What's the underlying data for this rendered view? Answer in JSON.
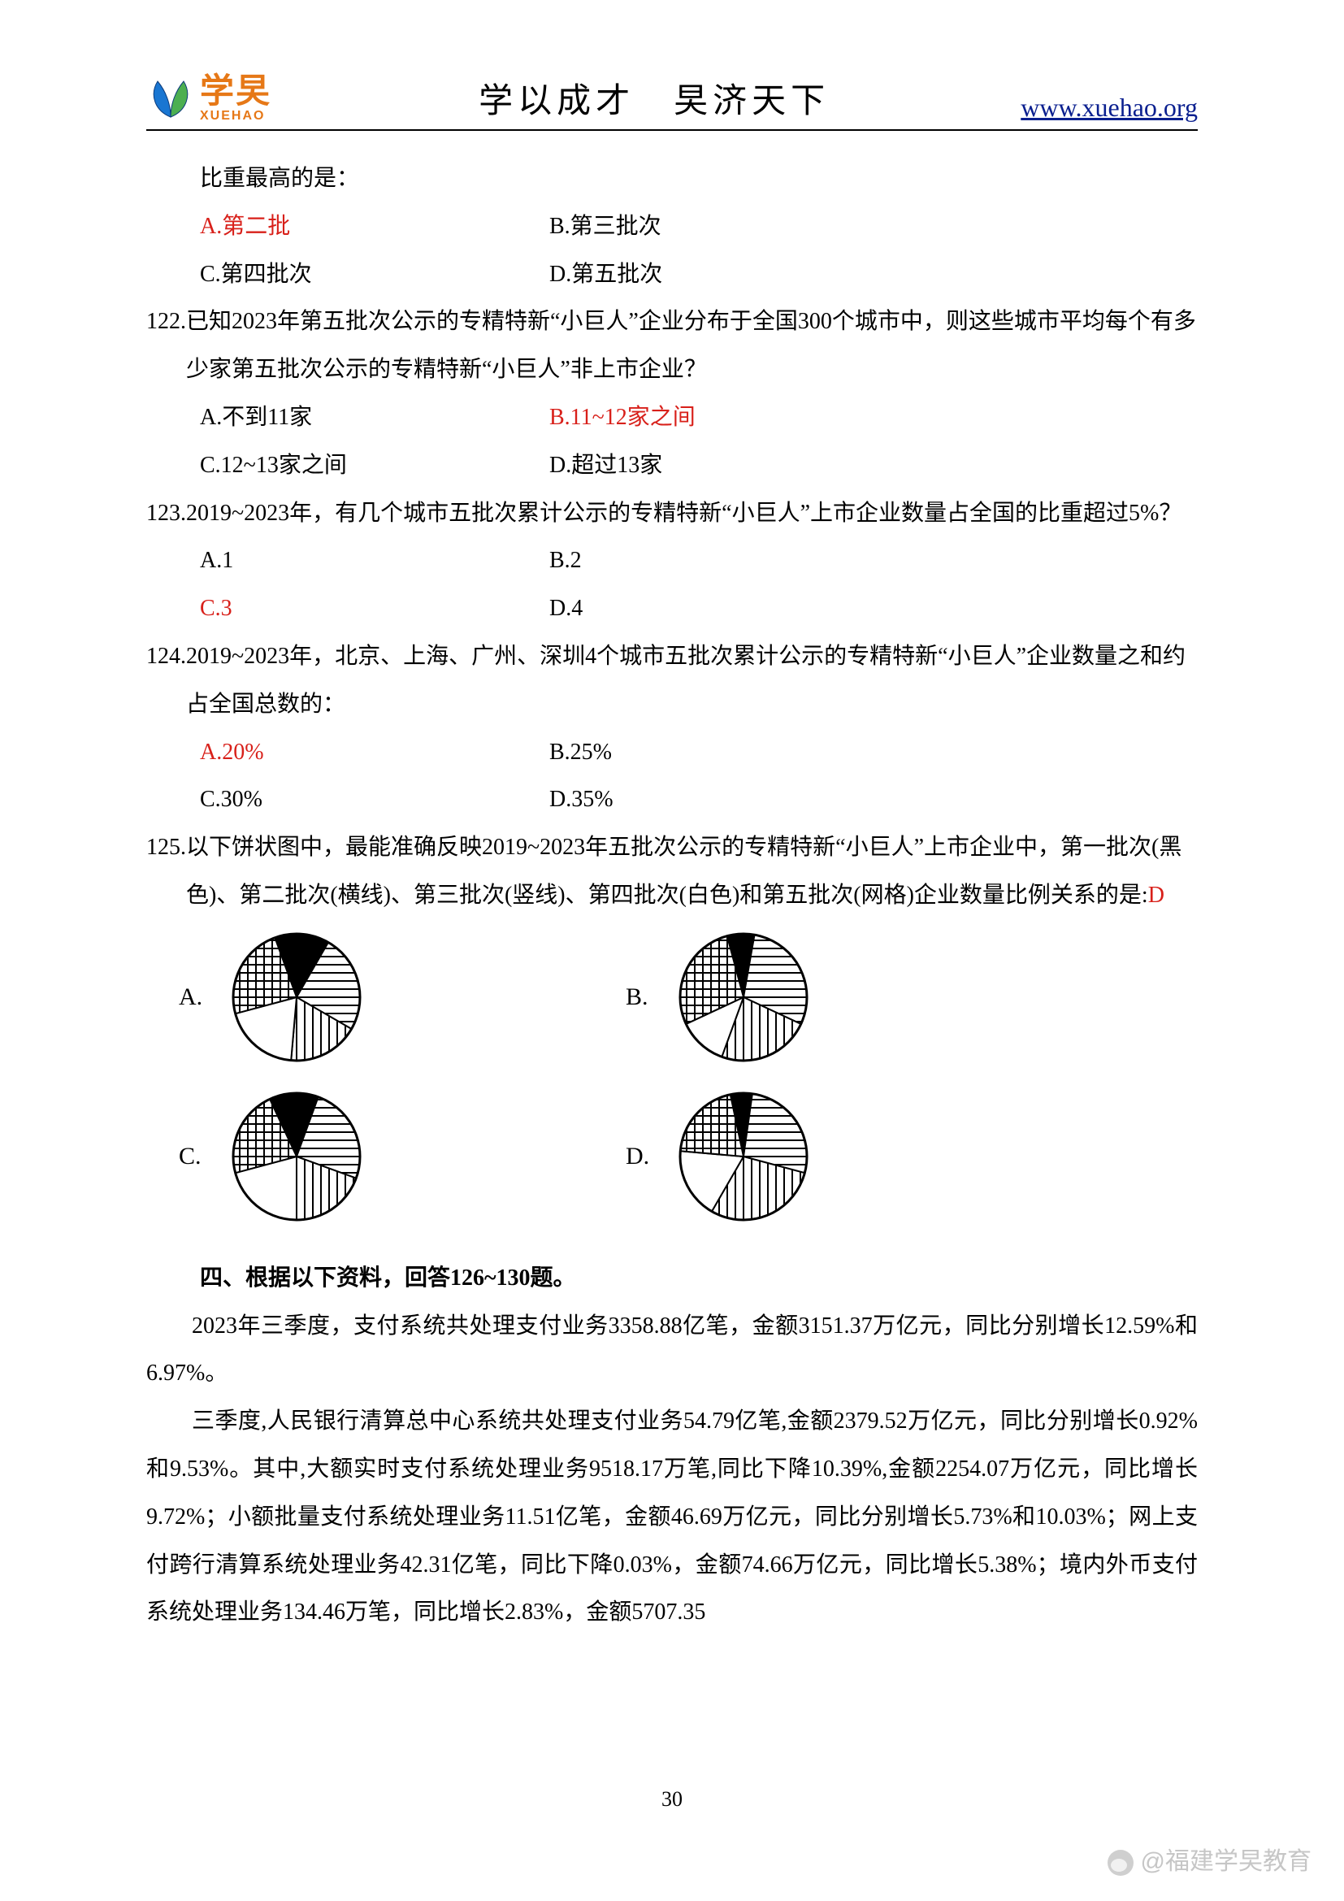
{
  "header": {
    "logo_cn": "学旲",
    "logo_en": "XUEHAO",
    "title": "学以成才　旲济天下",
    "link": "www.xuehao.org",
    "logo_leaf_colors": {
      "left": "#1976d2",
      "right": "#4caf50",
      "stroke": "#0b3a7a"
    }
  },
  "frag_top": {
    "text": "比重最高的是：",
    "opts": {
      "A": "A.第二批",
      "B": "B.第三批次",
      "C": "C.第四批次",
      "D": "D.第五批次"
    },
    "answer": "A"
  },
  "q122": {
    "num": "122.",
    "text": "已知2023年第五批次公示的专精特新“小巨人”企业分布于全国300个城市中，则这些城市平均每个有多少家第五批次公示的专精特新“小巨人”非上市企业？",
    "opts": {
      "A": "A.不到11家",
      "B": "B.11~12家之间",
      "C": "C.12~13家之间",
      "D": "D.超过13家"
    },
    "answer": "B"
  },
  "q123": {
    "num": "123.",
    "text": "2019~2023年，有几个城市五批次累计公示的专精特新“小巨人”上市企业数量占全国的比重超过5%？",
    "opts": {
      "A": "A.1",
      "B": "B.2",
      "C": "C.3",
      "D": "D.4"
    },
    "answer": "C"
  },
  "q124": {
    "num": "124.",
    "text": "2019~2023年，北京、上海、广州、深圳4个城市五批次累计公示的专精特新“小巨人”企业数量之和约占全国总数的：",
    "opts": {
      "A": "A.20%",
      "B": "B.25%",
      "C": "C.30%",
      "D": "D.35%"
    },
    "answer": "A"
  },
  "q125": {
    "num": "125.",
    "text_a": "以下饼状图中，最能准确反映2019~2023年五批次公示的专精特新“小巨人”上市企业中，第一批次(黑色)、第二批次(横线)、第三批次(竖线)、第四批次(白色)和第五批次(网格)企业数量比例关系的是:",
    "answer_letter": "D",
    "pies": {
      "fill_colors": {
        "black": "#000000",
        "white": "#ffffff"
      },
      "pattern_stroke": "#000000",
      "radius": 78,
      "A": {
        "label": "A.",
        "slices": [
          {
            "start": -20,
            "end": 30,
            "fill": "black"
          },
          {
            "start": 30,
            "end": 120,
            "fill": "horiz"
          },
          {
            "start": 120,
            "end": 185,
            "fill": "vert"
          },
          {
            "start": 185,
            "end": 255,
            "fill": "white"
          },
          {
            "start": 255,
            "end": 340,
            "fill": "grid"
          }
        ]
      },
      "B": {
        "label": "B.",
        "slices": [
          {
            "start": -15,
            "end": 10,
            "fill": "black"
          },
          {
            "start": 10,
            "end": 115,
            "fill": "horiz"
          },
          {
            "start": 115,
            "end": 200,
            "fill": "vert"
          },
          {
            "start": 200,
            "end": 245,
            "fill": "white"
          },
          {
            "start": 245,
            "end": 345,
            "fill": "grid"
          }
        ]
      },
      "C": {
        "label": "C.",
        "slices": [
          {
            "start": -25,
            "end": 20,
            "fill": "black"
          },
          {
            "start": 20,
            "end": 110,
            "fill": "horiz"
          },
          {
            "start": 110,
            "end": 180,
            "fill": "vert"
          },
          {
            "start": 180,
            "end": 255,
            "fill": "white"
          },
          {
            "start": 255,
            "end": 335,
            "fill": "grid"
          }
        ]
      },
      "D": {
        "label": "D.",
        "slices": [
          {
            "start": -12,
            "end": 8,
            "fill": "black"
          },
          {
            "start": 8,
            "end": 105,
            "fill": "horiz"
          },
          {
            "start": 105,
            "end": 210,
            "fill": "vert"
          },
          {
            "start": 210,
            "end": 275,
            "fill": "white"
          },
          {
            "start": 275,
            "end": 348,
            "fill": "grid"
          }
        ]
      }
    }
  },
  "section4": {
    "title": "四、根据以下资料，回答126~130题。",
    "p1": "2023年三季度，支付系统共处理支付业务3358.88亿笔，金额3151.37万亿元，同比分别增长12.59%和6.97%。",
    "p2": "三季度,人民银行清算总中心系统共处理支付业务54.79亿笔,金额2379.52万亿元，同比分别增长0.92%和9.53%。其中,大额实时支付系统处理业务9518.17万笔,同比下降10.39%,金额2254.07万亿元，同比增长9.72%；小额批量支付系统处理业务11.51亿笔，金额46.69万亿元，同比分别增长5.73%和10.03%；网上支付跨行清算系统处理业务42.31亿笔，同比下降0.03%，金额74.66万亿元，同比增长5.38%；境内外币支付系统处理业务134.46万笔，同比增长2.83%，金额5707.35"
  },
  "page_number": "30",
  "watermark": "@福建学旲教育"
}
